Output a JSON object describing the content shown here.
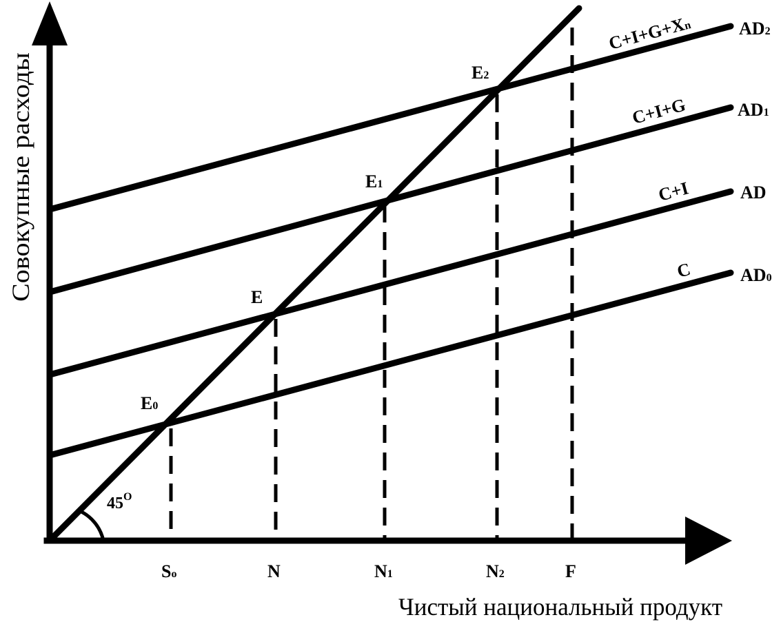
{
  "axes": {
    "y_label": "Совокупные расходы",
    "x_label": "Чистый национальный продукт"
  },
  "angle": {
    "value": "45",
    "unit": "O"
  },
  "curves": [
    {
      "id": "ad0",
      "formula": "C",
      "name": "AD",
      "name_sub": "0"
    },
    {
      "id": "ad",
      "formula": "C+I",
      "name": "AD",
      "name_sub": ""
    },
    {
      "id": "ad1",
      "formula": "C+I+G",
      "name": "AD",
      "name_sub": "1"
    },
    {
      "id": "ad2",
      "formula": "C+I+G+X",
      "formula_sub": "n",
      "name": "AD",
      "name_sub": "2"
    }
  ],
  "equilibria": [
    {
      "id": "e0",
      "point": "E",
      "point_sub": "0",
      "tick": "S",
      "tick_sub": "o"
    },
    {
      "id": "e",
      "point": "E",
      "point_sub": "",
      "tick": "N",
      "tick_sub": ""
    },
    {
      "id": "e1",
      "point": "E",
      "point_sub": "1",
      "tick": "N",
      "tick_sub": "1"
    },
    {
      "id": "e2",
      "point": "E",
      "point_sub": "2",
      "tick": "N",
      "tick_sub": "2"
    }
  ],
  "full_employment": {
    "tick": "F"
  }
}
